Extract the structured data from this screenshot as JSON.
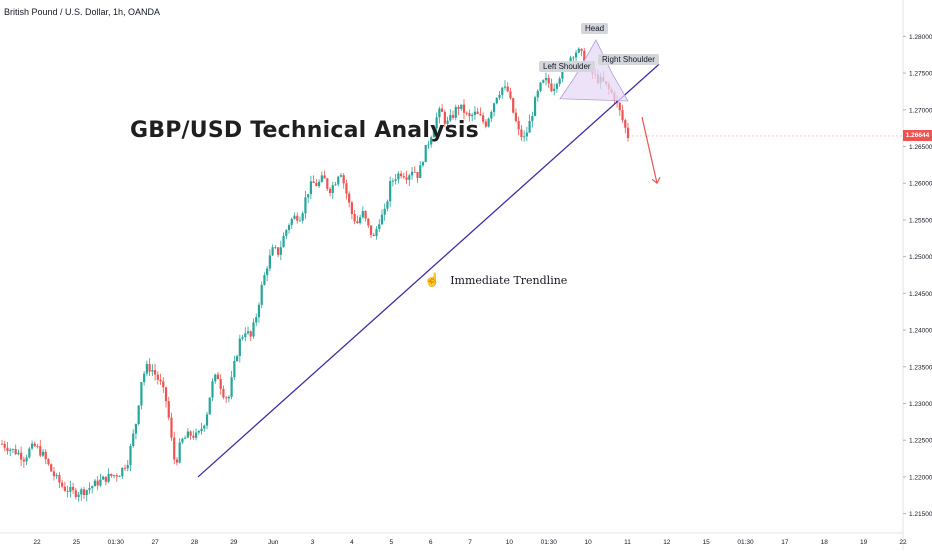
{
  "header": {
    "symbol": "British Pound / U.S. Dollar, 1h, OANDA"
  },
  "title": "GBP/USD Technical Analysis",
  "trendline_label": "Immediate Trendline",
  "pattern_labels": {
    "head": "Head",
    "left_shoulder": "Left Shoulder",
    "right_shoulder": "Right Shoulder"
  },
  "last_price": "1.26644",
  "colors": {
    "up": "#26a69a",
    "down": "#ef5350",
    "trendline": "#3f2ea8",
    "pattern_fill": "#e6d9f7",
    "pattern_stroke": "#b39ddb",
    "arrow": "#ef5350"
  },
  "icons": {
    "hand": "pointing-hand-icon"
  },
  "chart_data": {
    "type": "candlestick",
    "y_axis": {
      "range": [
        1.2125,
        1.2825
      ],
      "ticks": [
        "1.28000",
        "1.27500",
        "1.27000",
        "1.26500",
        "1.26000",
        "1.25500",
        "1.25000",
        "1.24500",
        "1.24000",
        "1.23500",
        "1.23000",
        "1.22500",
        "1.22000",
        "1.21500"
      ],
      "tick_values": [
        1.28,
        1.275,
        1.27,
        1.265,
        1.26,
        1.255,
        1.25,
        1.245,
        1.24,
        1.235,
        1.23,
        1.225,
        1.22,
        1.215
      ]
    },
    "x_axis": {
      "ticks": [
        "22",
        "25",
        "01:30",
        "27",
        "28",
        "29",
        "Jun",
        "3",
        "4",
        "5",
        "6",
        "7",
        "10",
        "01:30",
        "10",
        "11",
        "12",
        "15",
        "01:30",
        "17",
        "18",
        "19",
        "22"
      ]
    },
    "price_path": [
      [
        0,
        1.2245
      ],
      [
        3,
        1.2238
      ],
      [
        6,
        1.2232
      ],
      [
        8,
        1.2225
      ],
      [
        10,
        1.2238
      ],
      [
        12,
        1.2242
      ],
      [
        15,
        1.2228
      ],
      [
        18,
        1.2205
      ],
      [
        22,
        1.2185
      ],
      [
        26,
        1.2178
      ],
      [
        30,
        1.2182
      ],
      [
        34,
        1.2192
      ],
      [
        38,
        1.22
      ],
      [
        42,
        1.2205
      ],
      [
        45,
        1.2222
      ],
      [
        48,
        1.2275
      ],
      [
        50,
        1.2335
      ],
      [
        52,
        1.235
      ],
      [
        54,
        1.2345
      ],
      [
        57,
        1.2325
      ],
      [
        59,
        1.23
      ],
      [
        61,
        1.224
      ],
      [
        62,
        1.2215
      ],
      [
        64,
        1.2248
      ],
      [
        67,
        1.2258
      ],
      [
        70,
        1.2255
      ],
      [
        73,
        1.228
      ],
      [
        75,
        1.2325
      ],
      [
        77,
        1.234
      ],
      [
        79,
        1.2315
      ],
      [
        81,
        1.2305
      ],
      [
        83,
        1.235
      ],
      [
        85,
        1.2385
      ],
      [
        87,
        1.24
      ],
      [
        89,
        1.239
      ],
      [
        91,
        1.242
      ],
      [
        93,
        1.246
      ],
      [
        95,
        1.249
      ],
      [
        97,
        1.251
      ],
      [
        99,
        1.2505
      ],
      [
        101,
        1.253
      ],
      [
        103,
        1.2548
      ],
      [
        105,
        1.2555
      ],
      [
        107,
        1.2555
      ],
      [
        109,
        1.2585
      ],
      [
        111,
        1.26
      ],
      [
        113,
        1.2598
      ],
      [
        115,
        1.2608
      ],
      [
        117,
        1.259
      ],
      [
        119,
        1.26
      ],
      [
        121,
        1.262
      ],
      [
        123,
        1.259
      ],
      [
        125,
        1.256
      ],
      [
        127,
        1.2545
      ],
      [
        129,
        1.256
      ],
      [
        131,
        1.254
      ],
      [
        133,
        1.2525
      ],
      [
        135,
        1.255
      ],
      [
        137,
        1.256
      ],
      [
        139,
        1.26
      ],
      [
        141,
        1.261
      ],
      [
        143,
        1.2615
      ],
      [
        145,
        1.261
      ],
      [
        147,
        1.262
      ],
      [
        149,
        1.261
      ],
      [
        151,
        1.264
      ],
      [
        153,
        1.266
      ],
      [
        155,
        1.2685
      ],
      [
        157,
        1.27
      ],
      [
        159,
        1.268
      ],
      [
        161,
        1.269
      ],
      [
        163,
        1.2705
      ],
      [
        165,
        1.27
      ],
      [
        167,
        1.2688
      ],
      [
        169,
        1.2695
      ],
      [
        171,
        1.269
      ],
      [
        173,
        1.268
      ],
      [
        175,
        1.27
      ],
      [
        177,
        1.272
      ],
      [
        179,
        1.273
      ],
      [
        181,
        1.2725
      ],
      [
        183,
        1.2695
      ],
      [
        185,
        1.2668
      ],
      [
        187,
        1.266
      ],
      [
        189,
        1.2685
      ],
      [
        191,
        1.2715
      ],
      [
        193,
        1.2735
      ],
      [
        195,
        1.274
      ],
      [
        197,
        1.2728
      ],
      [
        199,
        1.2745
      ],
      [
        201,
        1.2752
      ],
      [
        203,
        1.277
      ],
      [
        205,
        1.278
      ],
      [
        207,
        1.2778
      ],
      [
        209,
        1.276
      ],
      [
        211,
        1.275
      ],
      [
        213,
        1.2742
      ],
      [
        215,
        1.2738
      ],
      [
        217,
        1.2728
      ],
      [
        219,
        1.2718
      ],
      [
        221,
        1.2698
      ],
      [
        223,
        1.2675
      ],
      [
        224,
        1.2664
      ]
    ],
    "trendline": [
      [
        1.22,
        0
      ],
      [
        1.2762,
        1
      ]
    ],
    "forecast_arrow": [
      [
        1.269,
        1.26
      ]
    ]
  }
}
